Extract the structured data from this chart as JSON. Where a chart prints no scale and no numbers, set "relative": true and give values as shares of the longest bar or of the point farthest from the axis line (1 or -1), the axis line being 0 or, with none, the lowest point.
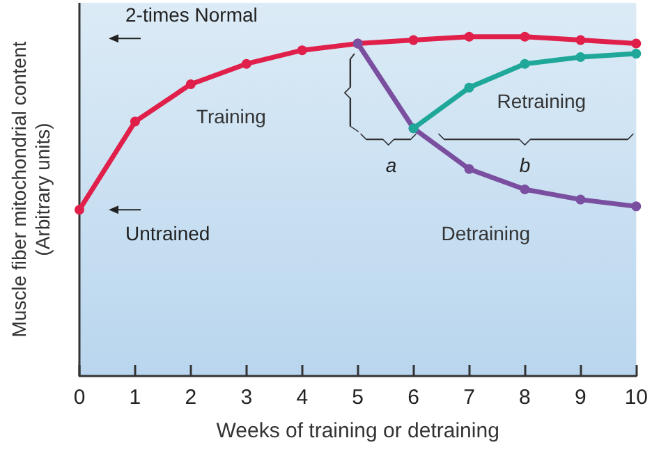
{
  "chart_data": {
    "type": "line",
    "relative": true,
    "xlabel": "Weeks of training or detraining",
    "ylabel": "Muscle fiber mitochondrial content\n(Arbitrary units)",
    "xlim": [
      0,
      10
    ],
    "xticks": [
      0,
      1,
      2,
      3,
      4,
      5,
      6,
      7,
      8,
      9,
      10
    ],
    "marker": "circle",
    "grid": false,
    "legend": false,
    "series": [
      {
        "name": "Training",
        "color": "#e0204a",
        "x": [
          0,
          1,
          2,
          3,
          4,
          5,
          6,
          7,
          8,
          9,
          10
        ],
        "values": [
          0.49,
          0.75,
          0.86,
          0.92,
          0.96,
          0.98,
          0.99,
          1,
          1,
          0.99,
          0.98
        ]
      },
      {
        "name": "Detraining",
        "color": "#7b4fa0",
        "x": [
          5,
          6,
          7,
          8,
          9,
          10
        ],
        "values": [
          0.98,
          0.73,
          0.61,
          0.55,
          0.52,
          0.5
        ]
      },
      {
        "name": "Retraining",
        "color": "#1fa89a",
        "x": [
          6,
          7,
          8,
          9,
          10
        ],
        "values": [
          0.73,
          0.85,
          0.92,
          0.94,
          0.95
        ]
      }
    ],
    "annotations": [
      "2-times Normal",
      "Untrained",
      "a",
      "b"
    ]
  }
}
